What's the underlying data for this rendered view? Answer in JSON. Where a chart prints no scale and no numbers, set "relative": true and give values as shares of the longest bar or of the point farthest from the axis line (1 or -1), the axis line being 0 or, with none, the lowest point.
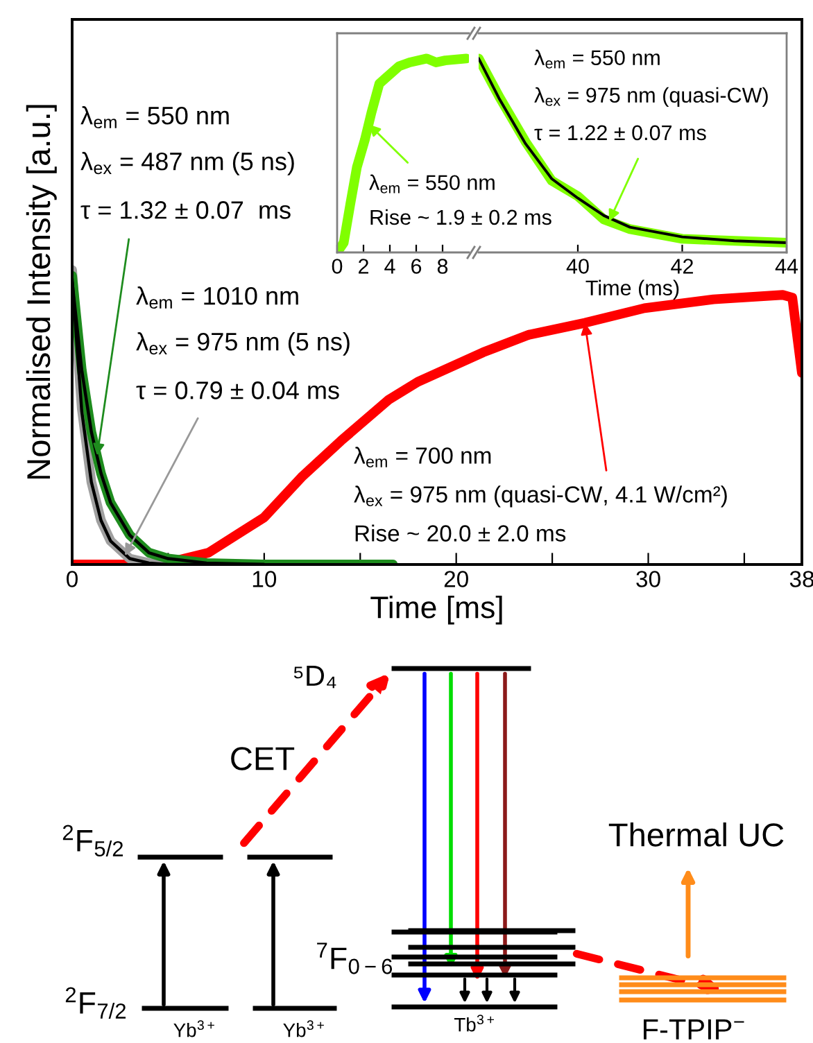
{
  "chart_data": [
    {
      "type": "line",
      "xlabel": "Time [ms]",
      "ylabel": "Normalised Intensity [a.u.]",
      "relative": true,
      "xlim": [
        0,
        38
      ],
      "xticks": [
        0,
        {
          "value": 5,
          "label": null
        },
        10,
        {
          "value": 15,
          "label": null
        },
        20,
        {
          "value": 25,
          "label": null
        },
        30,
        {
          "value": 35,
          "label": null
        },
        38
      ],
      "tick_labels": "x",
      "grid": false,
      "legend": false,
      "line_style": "solid",
      "marker": "none",
      "series": [
        {
          "color": "#ff0000",
          "x": [
            0,
            3,
            4.6,
            7.1,
            10,
            12,
            14,
            16.5,
            18,
            21.4,
            23.8,
            26.7,
            29.8,
            33.4,
            37,
            37.5,
            38
          ],
          "values": [
            0,
            0,
            0,
            0.04,
            0.16,
            0.3,
            0.42,
            0.56,
            0.62,
            0.72,
            0.78,
            0.82,
            0.87,
            0.9,
            0.915,
            0.906,
            0.65
          ]
        },
        {
          "color": "#a0a0a0",
          "x": [
            0,
            0.5,
            1,
            1.5,
            2,
            3,
            4,
            5,
            7,
            10,
            16.7
          ],
          "values": [
            1.0,
            0.53,
            0.28,
            0.15,
            0.08,
            0.02,
            0.005,
            0,
            0,
            0,
            0
          ]
        },
        {
          "color": "#1e8c1e",
          "x": [
            0,
            0.5,
            1,
            1.5,
            2,
            3,
            4,
            5,
            7,
            10,
            16.7
          ],
          "values": [
            0.98,
            0.66,
            0.45,
            0.31,
            0.21,
            0.1,
            0.04,
            0.02,
            0.005,
            0,
            0
          ]
        },
        {
          "color": "#000000",
          "x": [
            0,
            0.5,
            1,
            1.5,
            2,
            3,
            4,
            5,
            7,
            10
          ],
          "values": [
            0.97,
            0.52,
            0.28,
            0.15,
            0.08,
            0.02,
            0.005,
            0,
            0,
            0
          ]
        },
        {
          "color": "#000000",
          "x": [
            0,
            0.5,
            1,
            1.5,
            2,
            3,
            4,
            5,
            7,
            10
          ],
          "values": [
            0.96,
            0.66,
            0.45,
            0.31,
            0.21,
            0.1,
            0.04,
            0.02,
            0.005,
            0
          ]
        }
      ],
      "annotations": [
        "λ$_{em}$ = 550 nm",
        "λ$_{ex}$ = 487 nm (5 ns)",
        {
          "text": "τ = 1.32 ± 0.07  ms",
          "x": 1.3,
          "y": 0.37
        },
        "λ$_{em}$ = 1010 nm",
        "λ$_{ex}$ = 975 nm (5 ns)",
        {
          "text": "τ = 0.79 ± 0.04 ms",
          "x": 2.75,
          "y": 0.03
        },
        "λ$_{em}$ = 700 nm",
        {
          "text": "λ$_{ex}$ = 975 nm (quasi-CW, 4.1 W/cm²)",
          "x": 26.7,
          "y": 0.82
        },
        "Rise ~ 20.0 ± 2.0 ms"
      ]
    },
    {
      "type": "line",
      "relative": true,
      "xlim": [
        0,
        10
      ],
      "xticks": [
        0,
        2,
        4,
        6,
        8
      ],
      "tick_labels": "x",
      "grid": false,
      "legend": false,
      "series": [
        {
          "color": "#80ff00",
          "x": [
            0,
            0.5,
            1,
            1.5,
            2.1,
            2.6,
            3.2,
            3.7,
            4.7,
            5.5,
            6.8,
            7.5,
            8.2,
            9.8
          ],
          "values": [
            0,
            0.05,
            0.25,
            0.44,
            0.58,
            0.72,
            0.87,
            0.9,
            0.96,
            0.98,
            1.0,
            0.98,
            0.99,
            1.0
          ]
        }
      ],
      "annotations": [
        {
          "text": "λ$_{em}$ = 550 nm",
          "x": 2.4,
          "y": 0.66
        },
        "Rise ~ 1.9 ± 0.2 ms"
      ]
    },
    {
      "type": "line",
      "relative": true,
      "xlim": [
        38.1,
        44
      ],
      "xticks": [
        40,
        42,
        44
      ],
      "xlabel": "Time (ms)",
      "tick_labels": "x",
      "grid": false,
      "legend": false,
      "series": [
        {
          "color": "#80ff00",
          "x": [
            38.1,
            38.5,
            39,
            39.5,
            40,
            40.5,
            41,
            42,
            43,
            44
          ],
          "values": [
            1.0,
            0.8,
            0.57,
            0.37,
            0.29,
            0.17,
            0.12,
            0.07,
            0.06,
            0.05
          ]
        },
        {
          "color": "#000000",
          "x": [
            38.1,
            38.5,
            39,
            39.5,
            40,
            40.5,
            41,
            42,
            43,
            44
          ],
          "values": [
            1.0,
            0.79,
            0.56,
            0.38,
            0.28,
            0.19,
            0.13,
            0.08,
            0.06,
            0.05
          ]
        }
      ],
      "annotations": [
        "λ$_{em}$ = 550 nm",
        "λ$_{ex}$ = 975 nm (quasi-CW)",
        {
          "text": "τ = 1.22 ± 0.07 ms",
          "x": 40.6,
          "y": 0.16
        }
      ]
    },
    {
      "type": "other",
      "annotations": [
        "⁵D₄",
        "CET",
        "$^{2}$F$_{5/2}$",
        "$^{2}$F$_{7/2}$",
        "Yb$^{3+}$",
        "Yb$^{3+}$",
        "$^{7}$F$_{0−6}$",
        "Tb$^{3+}$",
        "Thermal UC",
        "F-TPIP$^{−}$"
      ]
    }
  ]
}
